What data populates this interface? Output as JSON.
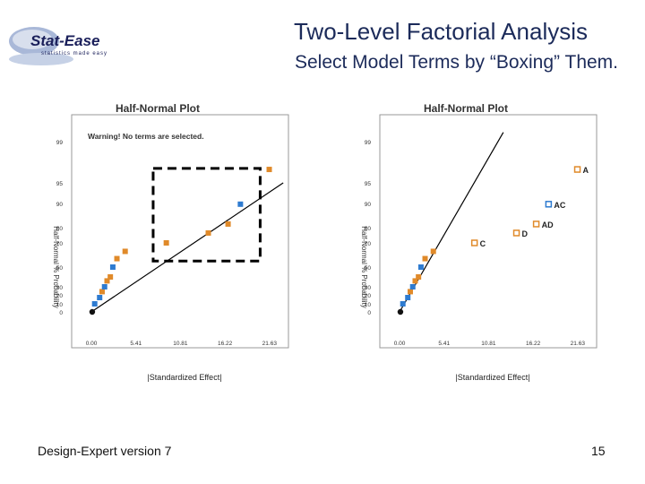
{
  "slide": {
    "title": "Two-Level Factorial Analysis",
    "subtitle": "Select Model Terms by “Boxing” Them.",
    "footer_left": "Design-Expert version 7",
    "page_number": "15",
    "logo_text": "Stat-Ease",
    "logo_tagline": "statistics made easy"
  },
  "chart_data": [
    {
      "type": "scatter",
      "title": "Half-Normal Plot",
      "xlabel": "|Standardized Effect|",
      "ylabel": "Half-Normal % Probability",
      "annotation": "Warning! No terms are selected.",
      "x_ticks": [
        "0.00",
        "5.41",
        "10.81",
        "16.22",
        "21.63"
      ],
      "xlim": [
        -1.2,
        23.5
      ],
      "y_ticks": [
        0,
        10,
        20,
        30,
        50,
        70,
        80,
        90,
        95,
        99
      ],
      "line": [
        [
          0,
          0
        ],
        [
          23.3,
          95
        ]
      ],
      "selection_box": {
        "x": [
          7.5,
          20.5
        ],
        "y": [
          55,
          96.4
        ]
      },
      "colors": {
        "orange": "#e08a2a",
        "blue": "#2e7bd0",
        "line": "#000000"
      },
      "series": [
        {
          "values": [
            {
              "x": 0.1,
              "y": 0,
              "c": "black"
            },
            {
              "x": 0.4,
              "y": 10,
              "c": "blue"
            },
            {
              "x": 1.0,
              "y": 17,
              "c": "blue"
            },
            {
              "x": 1.3,
              "y": 24,
              "c": "orange"
            },
            {
              "x": 1.6,
              "y": 30,
              "c": "blue"
            },
            {
              "x": 1.9,
              "y": 36,
              "c": "orange"
            },
            {
              "x": 2.3,
              "y": 40,
              "c": "orange"
            },
            {
              "x": 2.6,
              "y": 50,
              "c": "blue"
            },
            {
              "x": 3.1,
              "y": 57,
              "c": "orange"
            },
            {
              "x": 4.1,
              "y": 63,
              "c": "orange"
            },
            {
              "x": 9.1,
              "y": 70,
              "c": "orange"
            },
            {
              "x": 14.2,
              "y": 76.5,
              "c": "orange"
            },
            {
              "x": 16.6,
              "y": 81.5,
              "c": "orange"
            },
            {
              "x": 18.1,
              "y": 89.7,
              "c": "blue"
            },
            {
              "x": 21.6,
              "y": 96.3,
              "c": "orange"
            }
          ]
        }
      ]
    },
    {
      "type": "scatter",
      "title": "Half-Normal Plot",
      "xlabel": "|Standardized Effect|",
      "ylabel": "Half-Normal % Probability",
      "x_ticks": [
        "0.00",
        "5.41",
        "10.81",
        "16.22",
        "21.63"
      ],
      "xlim": [
        -1.2,
        23.5
      ],
      "y_ticks": [
        0,
        10,
        20,
        30,
        50,
        70,
        80,
        90,
        95,
        99
      ],
      "line": [
        [
          0,
          0
        ],
        [
          12.6,
          99.9
        ]
      ],
      "colors": {
        "orange": "#e08a2a",
        "blue": "#2e7bd0",
        "line": "#000000"
      },
      "series": [
        {
          "values": [
            {
              "x": 0.1,
              "y": 0,
              "c": "black"
            },
            {
              "x": 0.4,
              "y": 10,
              "c": "blue"
            },
            {
              "x": 1.0,
              "y": 17,
              "c": "blue"
            },
            {
              "x": 1.3,
              "y": 24,
              "c": "orange"
            },
            {
              "x": 1.6,
              "y": 30,
              "c": "blue"
            },
            {
              "x": 1.9,
              "y": 36,
              "c": "orange"
            },
            {
              "x": 2.3,
              "y": 40,
              "c": "orange"
            },
            {
              "x": 2.6,
              "y": 50,
              "c": "blue"
            },
            {
              "x": 3.1,
              "y": 57,
              "c": "orange"
            },
            {
              "x": 4.1,
              "y": 63,
              "c": "orange"
            }
          ]
        },
        {
          "name": "selected",
          "values": [
            {
              "x": 9.1,
              "y": 70,
              "c": "orange",
              "label": "C"
            },
            {
              "x": 14.2,
              "y": 76.5,
              "c": "orange",
              "label": "D"
            },
            {
              "x": 16.6,
              "y": 81.5,
              "c": "orange",
              "label": "AD"
            },
            {
              "x": 18.1,
              "y": 89.7,
              "c": "blue",
              "label": "AC"
            },
            {
              "x": 21.6,
              "y": 96.3,
              "c": "orange",
              "label": "A"
            }
          ]
        }
      ]
    }
  ]
}
